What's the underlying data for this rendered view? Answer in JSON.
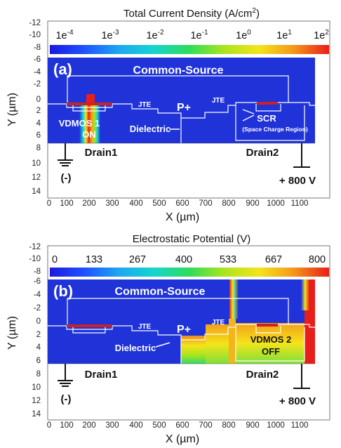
{
  "panels": [
    {
      "id": "a",
      "title": "Total Current Density (A/cm",
      "title_sup": "2",
      "title_end": ")",
      "colorbar_ticks": [
        {
          "base": "1e",
          "exp": "-4"
        },
        {
          "base": "1e",
          "exp": "-3"
        },
        {
          "base": "1e",
          "exp": "-2"
        },
        {
          "base": "1e",
          "exp": "-1"
        },
        {
          "base": "1e",
          "exp": "0"
        },
        {
          "base": "1e",
          "exp": "1"
        },
        {
          "base": "1e",
          "exp": "2"
        }
      ],
      "panel_label": "(a)",
      "common_source": "Common-Source",
      "jte_labels": [
        "JTE",
        "JTE"
      ],
      "pplus": "P+",
      "dielectric": "Dielectric",
      "device_label_1": "VDMOS 1",
      "device_state_1": "ON",
      "scr": "SCR",
      "scr_full": "(Space Charge Region)",
      "drain_left": "Drain1",
      "drain_right": "Drain2",
      "gnd_label": "(-)",
      "voltage_label": "+ 800 V",
      "y_ticks": [
        "-12",
        "-10",
        "-8",
        "-6",
        "-4",
        "-2",
        "0",
        "2",
        "4",
        "6",
        "8",
        "10",
        "12",
        "14"
      ],
      "x_ticks": [
        "0",
        "100",
        "200",
        "300",
        "400",
        "500",
        "600",
        "700",
        "800",
        "900",
        "1000",
        "1100"
      ],
      "ylabel": "Y (µm)",
      "xlabel": "X (µm)"
    },
    {
      "id": "b",
      "title": "Electrostatic Potential (V)",
      "title_sup": "",
      "title_end": "",
      "colorbar_ticks": [
        {
          "base": "0",
          "exp": ""
        },
        {
          "base": "133",
          "exp": ""
        },
        {
          "base": "267",
          "exp": ""
        },
        {
          "base": "400",
          "exp": ""
        },
        {
          "base": "533",
          "exp": ""
        },
        {
          "base": "667",
          "exp": ""
        },
        {
          "base": "800",
          "exp": ""
        }
      ],
      "panel_label": "(b)",
      "common_source": "Common-Source",
      "jte_labels": [
        "JTE",
        "JTE"
      ],
      "pplus": "P+",
      "dielectric": "Dielectric",
      "device_label_2": "VDMOS 2",
      "device_state_2": "OFF",
      "drain_left": "Drain1",
      "drain_right": "Drain2",
      "gnd_label": "(-)",
      "voltage_label": "+ 800 V",
      "y_ticks": [
        "-12",
        "-10",
        "-8",
        "-6",
        "-4",
        "-2",
        "0",
        "2",
        "4",
        "6",
        "8",
        "10",
        "12",
        "14"
      ],
      "x_ticks": [
        "0",
        "100",
        "200",
        "300",
        "400",
        "500",
        "600",
        "700",
        "800",
        "900",
        "1000",
        "1100"
      ],
      "ylabel": "Y (µm)",
      "xlabel": "X (µm)"
    }
  ],
  "colors": {
    "field_blue": "#1f33d9",
    "high_red": "#e8201a",
    "structure_line": "#ffffff"
  }
}
